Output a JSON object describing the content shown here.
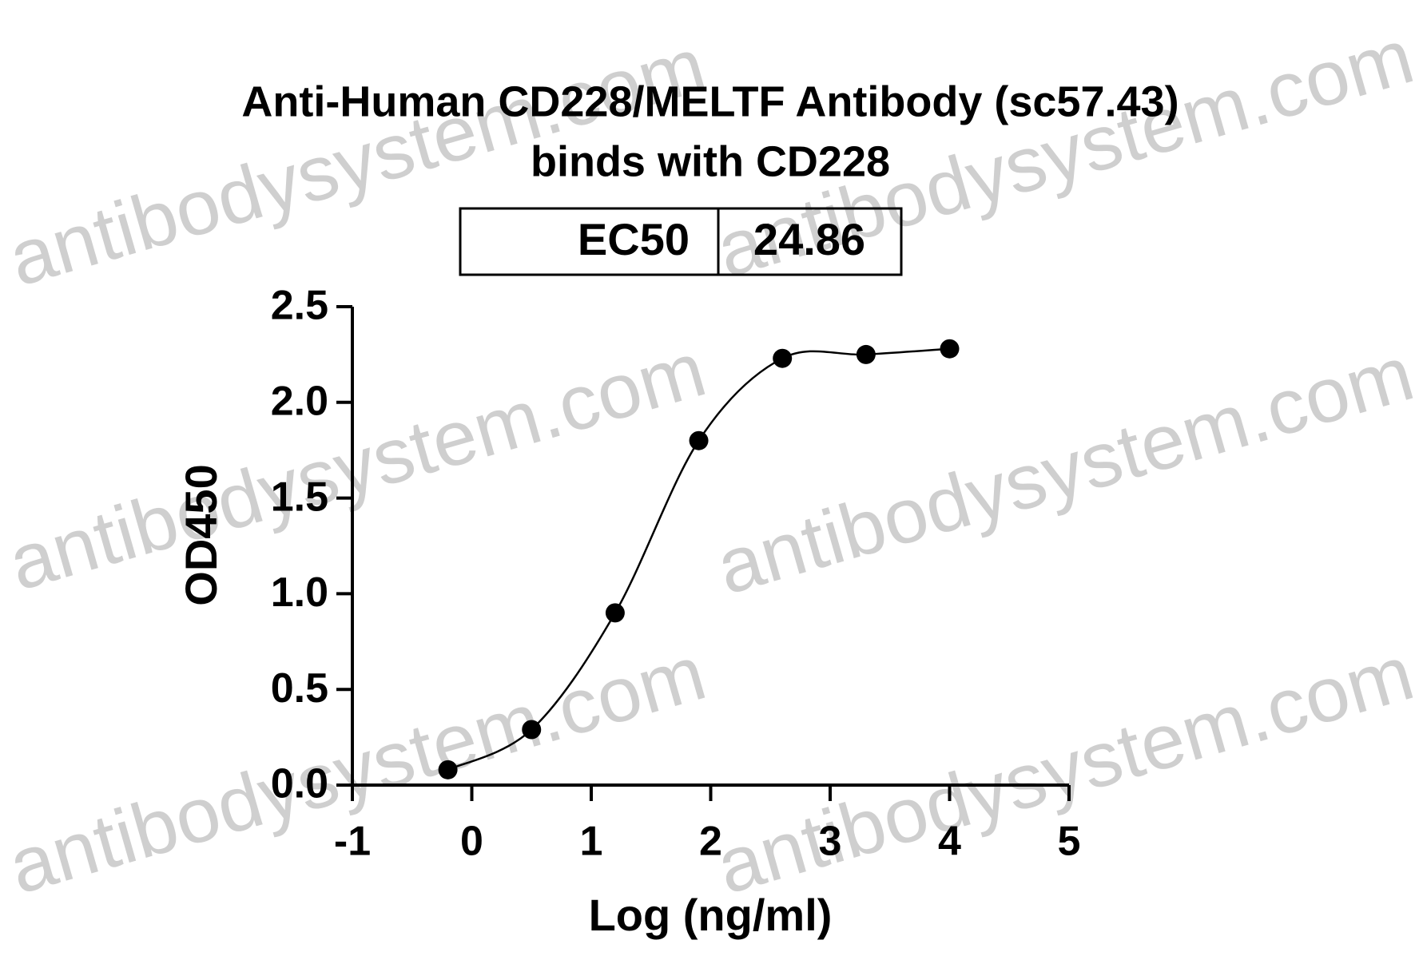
{
  "chart_data": {
    "type": "scatter",
    "title": "Anti-Human CD228/MELTF Antibody (sc57.43)",
    "subtitle": "binds with CD228",
    "ec50_label": "EC50",
    "ec50_value": "24.86",
    "watermark": "antibodysystem.com",
    "x_label": "Log (ng/ml)",
    "y_label": "OD450",
    "x": [
      -0.2,
      0.5,
      1.2,
      1.9,
      2.6,
      3.3,
      4.0
    ],
    "values": [
      0.08,
      0.29,
      0.9,
      1.8,
      2.23,
      2.25,
      2.28
    ],
    "color": "#000000",
    "fit_line": true,
    "xlim": [
      -1,
      5
    ],
    "xticks": [
      -1,
      0,
      1,
      2,
      3,
      4,
      5
    ],
    "ylim": [
      0,
      2.5
    ],
    "yticks": [
      {
        "value": 0,
        "label": "0.0"
      },
      0.5,
      {
        "value": 1,
        "label": "1.0"
      },
      1.5,
      {
        "value": 2,
        "label": "2.0"
      },
      2.5
    ],
    "grid": false
  }
}
